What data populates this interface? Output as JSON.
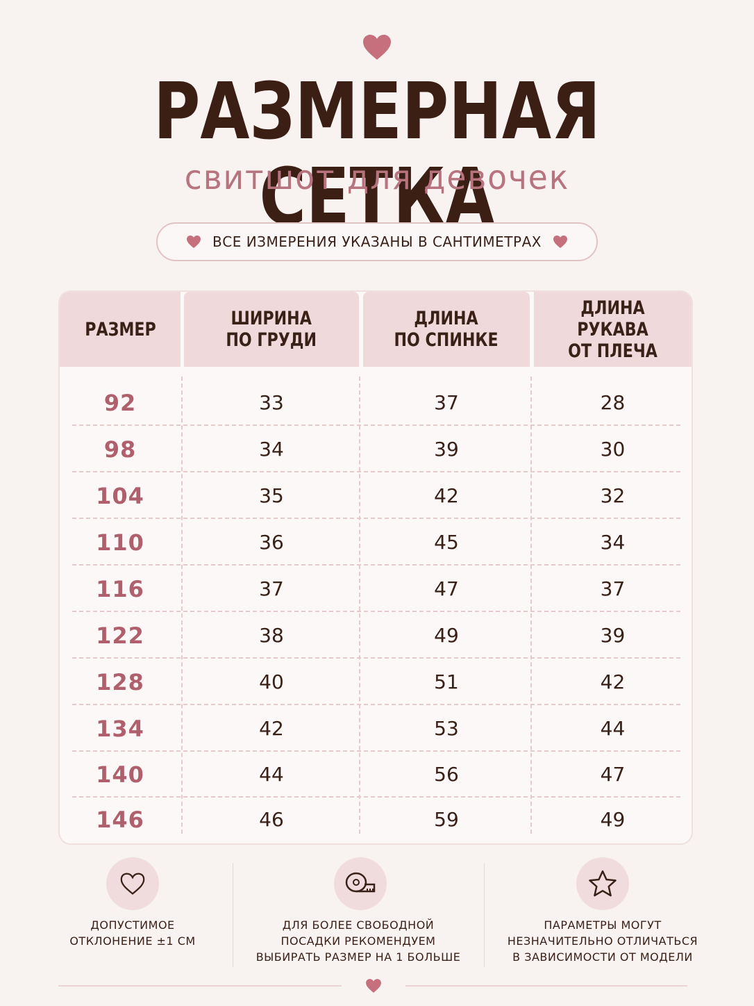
{
  "title": "РАЗМЕРНАЯ СЕТКА",
  "subtitle": "свитшот для девочек",
  "note": "ВСЕ ИЗМЕРЕНИЯ УКАЗАНЫ В САНТИМЕТРАХ",
  "colors": {
    "accent": "#c07580",
    "title": "#3b1f15",
    "header_bg": "#f0d9da",
    "background": "#f8f3f1"
  },
  "table": {
    "headers": [
      "РАЗМЕР",
      "ШИРИНА\nПО ГРУДИ",
      "ДЛИНА\nПО СПИНКЕ",
      "ДЛИНА РУКАВА\nОТ ПЛЕЧА"
    ],
    "rows": [
      [
        "92",
        "33",
        "37",
        "28"
      ],
      [
        "98",
        "34",
        "39",
        "30"
      ],
      [
        "104",
        "35",
        "42",
        "32"
      ],
      [
        "110",
        "36",
        "45",
        "34"
      ],
      [
        "116",
        "37",
        "47",
        "37"
      ],
      [
        "122",
        "38",
        "49",
        "39"
      ],
      [
        "128",
        "40",
        "51",
        "42"
      ],
      [
        "134",
        "42",
        "53",
        "44"
      ],
      [
        "140",
        "44",
        "56",
        "47"
      ],
      [
        "146",
        "46",
        "59",
        "49"
      ]
    ]
  },
  "features": [
    {
      "icon": "heart-outline-icon",
      "text": "ДОПУСТИМОЕ\nОТКЛОНЕНИЕ ±1 СМ"
    },
    {
      "icon": "measuring-tape-icon",
      "text": "ДЛЯ БОЛЕЕ СВОБОДНОЙ\nПОСАДКИ РЕКОМЕНДУЕМ\nВЫБИРАТЬ РАЗМЕР НА 1 БОЛЬШЕ"
    },
    {
      "icon": "star-outline-icon",
      "text": "ПАРАМЕТРЫ МОГУТ\nНЕЗНАЧИТЕЛЬНО ОТЛИЧАТЬСЯ\nВ ЗАВИСИМОСТИ ОТ МОДЕЛИ"
    }
  ]
}
